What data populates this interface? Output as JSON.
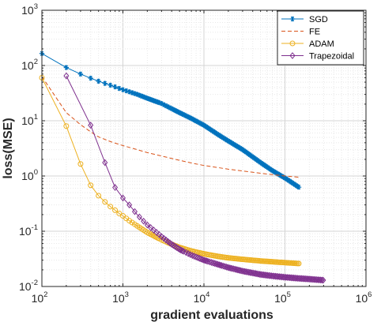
{
  "chart_data": {
    "type": "line",
    "xscale": "log",
    "yscale": "log",
    "xlim": [
      100,
      1000000
    ],
    "ylim": [
      0.01,
      1000
    ],
    "xlabel": "gradient evaluations",
    "ylabel": "loss(MSE)",
    "grid": true,
    "legend": "top-right",
    "x_ticks": [
      {
        "base": "10",
        "exp": "2",
        "value": 100
      },
      {
        "base": "10",
        "exp": "3",
        "value": 1000
      },
      {
        "base": "10",
        "exp": "4",
        "value": 10000
      },
      {
        "base": "10",
        "exp": "5",
        "value": 100000
      },
      {
        "base": "10",
        "exp": "6",
        "value": 1000000
      }
    ],
    "y_ticks": [
      {
        "base": "10",
        "exp": "-2",
        "value": 0.01
      },
      {
        "base": "10",
        "exp": "-1",
        "value": 0.1
      },
      {
        "base": "10",
        "exp": "0",
        "value": 1
      },
      {
        "base": "10",
        "exp": "1",
        "value": 10
      },
      {
        "base": "10",
        "exp": "2",
        "value": 100
      },
      {
        "base": "10",
        "exp": "3",
        "value": 1000
      }
    ],
    "series": [
      {
        "name": "SGD",
        "color": "#0072BD",
        "marker": "star",
        "line": "solid",
        "x": [
          100,
          200,
          300,
          400,
          500,
          600,
          700,
          800,
          900,
          1000,
          1500,
          2000,
          3000,
          5000,
          7000,
          10000,
          15000,
          20000,
          30000,
          50000,
          70000,
          100000,
          150000
        ],
        "y": [
          165,
          92,
          70,
          59,
          52,
          47.5,
          44,
          41,
          38.5,
          36.5,
          30,
          25.5,
          20.5,
          14,
          11,
          8.3,
          5.6,
          4.3,
          3.0,
          1.75,
          1.25,
          0.92,
          0.62
        ]
      },
      {
        "name": "FE",
        "color": "#D95319",
        "marker": "none",
        "line": "dashed",
        "x": [
          100,
          200,
          300,
          400,
          500,
          700,
          1000,
          1500,
          2000,
          3000,
          5000,
          7000,
          10000,
          20000,
          50000,
          100000,
          150000
        ],
        "y": [
          63,
          14,
          8.5,
          6.3,
          5.1,
          4.2,
          3.55,
          3.0,
          2.65,
          2.3,
          1.92,
          1.72,
          1.55,
          1.33,
          1.12,
          1.0,
          0.95
        ]
      },
      {
        "name": "ADAM",
        "color": "#EDB120",
        "marker": "circle",
        "line": "solid",
        "x": [
          100,
          200,
          300,
          400,
          500,
          600,
          700,
          800,
          900,
          1000,
          1200,
          1500,
          2000,
          2500,
          3000,
          4000,
          5000,
          7000,
          10000,
          15000,
          20000,
          30000,
          50000,
          70000,
          100000,
          150000
        ],
        "y": [
          60,
          8,
          1.65,
          0.68,
          0.44,
          0.34,
          0.28,
          0.24,
          0.21,
          0.19,
          0.155,
          0.125,
          0.095,
          0.08,
          0.07,
          0.058,
          0.051,
          0.044,
          0.039,
          0.035,
          0.033,
          0.031,
          0.029,
          0.028,
          0.027,
          0.026
        ]
      },
      {
        "name": "Trapezoidal",
        "color": "#7E2F8E",
        "marker": "diamond",
        "line": "solid",
        "x": [
          200,
          400,
          600,
          800,
          1000,
          1200,
          1500,
          2000,
          2500,
          3000,
          4000,
          5000,
          7000,
          10000,
          15000,
          20000,
          30000,
          50000,
          70000,
          100000,
          150000,
          200000,
          300000
        ],
        "y": [
          65,
          8.3,
          1.75,
          0.62,
          0.4,
          0.3,
          0.2,
          0.13,
          0.1,
          0.08,
          0.058,
          0.047,
          0.037,
          0.03,
          0.025,
          0.022,
          0.019,
          0.0165,
          0.0155,
          0.0147,
          0.014,
          0.0136,
          0.013
        ]
      }
    ]
  }
}
